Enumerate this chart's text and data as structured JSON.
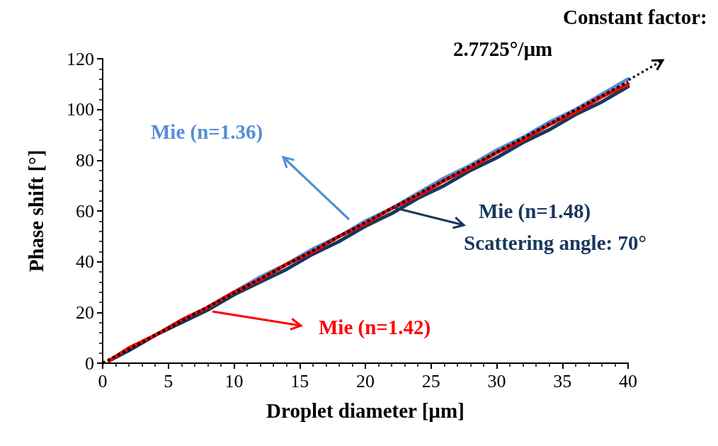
{
  "chart_data": {
    "type": "line",
    "xlabel": "Droplet diameter [µm]",
    "ylabel": "Phase shift [°]",
    "x": [
      0.5,
      2,
      4,
      6,
      8,
      10,
      12,
      14,
      16,
      18,
      20,
      22,
      24,
      26,
      28,
      30,
      32,
      34,
      36,
      38,
      40
    ],
    "series": [
      {
        "name": "Mie (n=1.48)",
        "color": "#17375e",
        "values": [
          1,
          5,
          11,
          16,
          21,
          27,
          32,
          37,
          43,
          48,
          54,
          59,
          65,
          70,
          76,
          81,
          87,
          92,
          98,
          103,
          109
        ]
      },
      {
        "name": "Mie (n=1.36)",
        "color": "#558ed5",
        "values": [
          null,
          null,
          null,
          null,
          22,
          28,
          34,
          39,
          45,
          50,
          56,
          61,
          67,
          73,
          78,
          84,
          89,
          95,
          100,
          106,
          112
        ]
      },
      {
        "name": "Mie (n=1.42)",
        "color": "#ff0000",
        "values": [
          1,
          6,
          11,
          17,
          22,
          28,
          33,
          39,
          44,
          50,
          55,
          61,
          66,
          72,
          77,
          83,
          88,
          94,
          99,
          105,
          110
        ]
      },
      {
        "color": "#000000",
        "x": [
          0,
          40
        ],
        "values": [
          0,
          110.9
        ],
        "line_style": "dotted"
      }
    ],
    "annotations": [
      "Scattering angle: 70°",
      "Constant factor: 2.7725°/µm"
    ],
    "xlim": [
      0,
      40
    ],
    "xticks": [
      0,
      5,
      10,
      15,
      20,
      25,
      30,
      35,
      40
    ],
    "ylim": [
      0,
      120
    ],
    "yticks": [
      0,
      20,
      40,
      60,
      80,
      100,
      120
    ],
    "marker": "none",
    "grid": false,
    "legend": "right"
  }
}
